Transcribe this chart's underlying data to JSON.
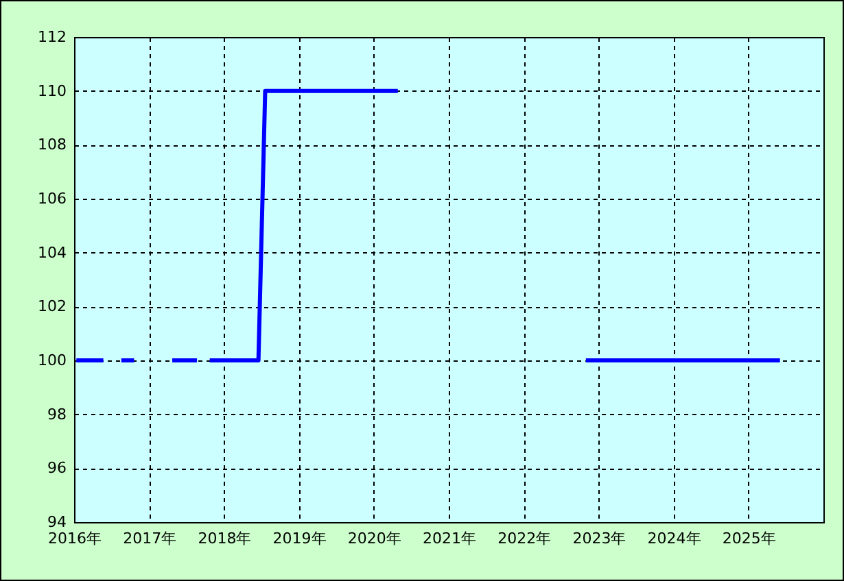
{
  "chart_data": {
    "type": "line",
    "x": [
      2016.03,
      2016.39,
      2016.5,
      2016.63,
      2016.8,
      2017.0,
      2017.31,
      2017.64,
      2017.72,
      2017.81,
      2018.46,
      2018.55,
      2020.32,
      2021.5,
      2022.83,
      2025.42
    ],
    "series": [
      {
        "color": "#0000ff",
        "values": [
          100,
          100,
          null,
          100,
          100,
          null,
          100,
          100,
          null,
          100,
          100,
          110,
          110,
          null,
          100,
          100
        ]
      }
    ],
    "xlim": [
      2016,
      2026
    ],
    "xticks": [
      {
        "value": 2016,
        "label": "2016年"
      },
      {
        "value": 2017,
        "label": "2017年"
      },
      {
        "value": 2018,
        "label": "2018年"
      },
      {
        "value": 2019,
        "label": "2019年"
      },
      {
        "value": 2020,
        "label": "2020年"
      },
      {
        "value": 2021,
        "label": "2021年"
      },
      {
        "value": 2022,
        "label": "2022年"
      },
      {
        "value": 2023,
        "label": "2023年"
      },
      {
        "value": 2024,
        "label": "2024年"
      },
      {
        "value": 2025,
        "label": "2025年"
      }
    ],
    "ylim": [
      94,
      112
    ],
    "yticks": [
      94,
      96,
      98,
      100,
      102,
      104,
      106,
      108,
      110,
      112
    ],
    "grid": true,
    "marker": "none",
    "line_style": "solid"
  }
}
